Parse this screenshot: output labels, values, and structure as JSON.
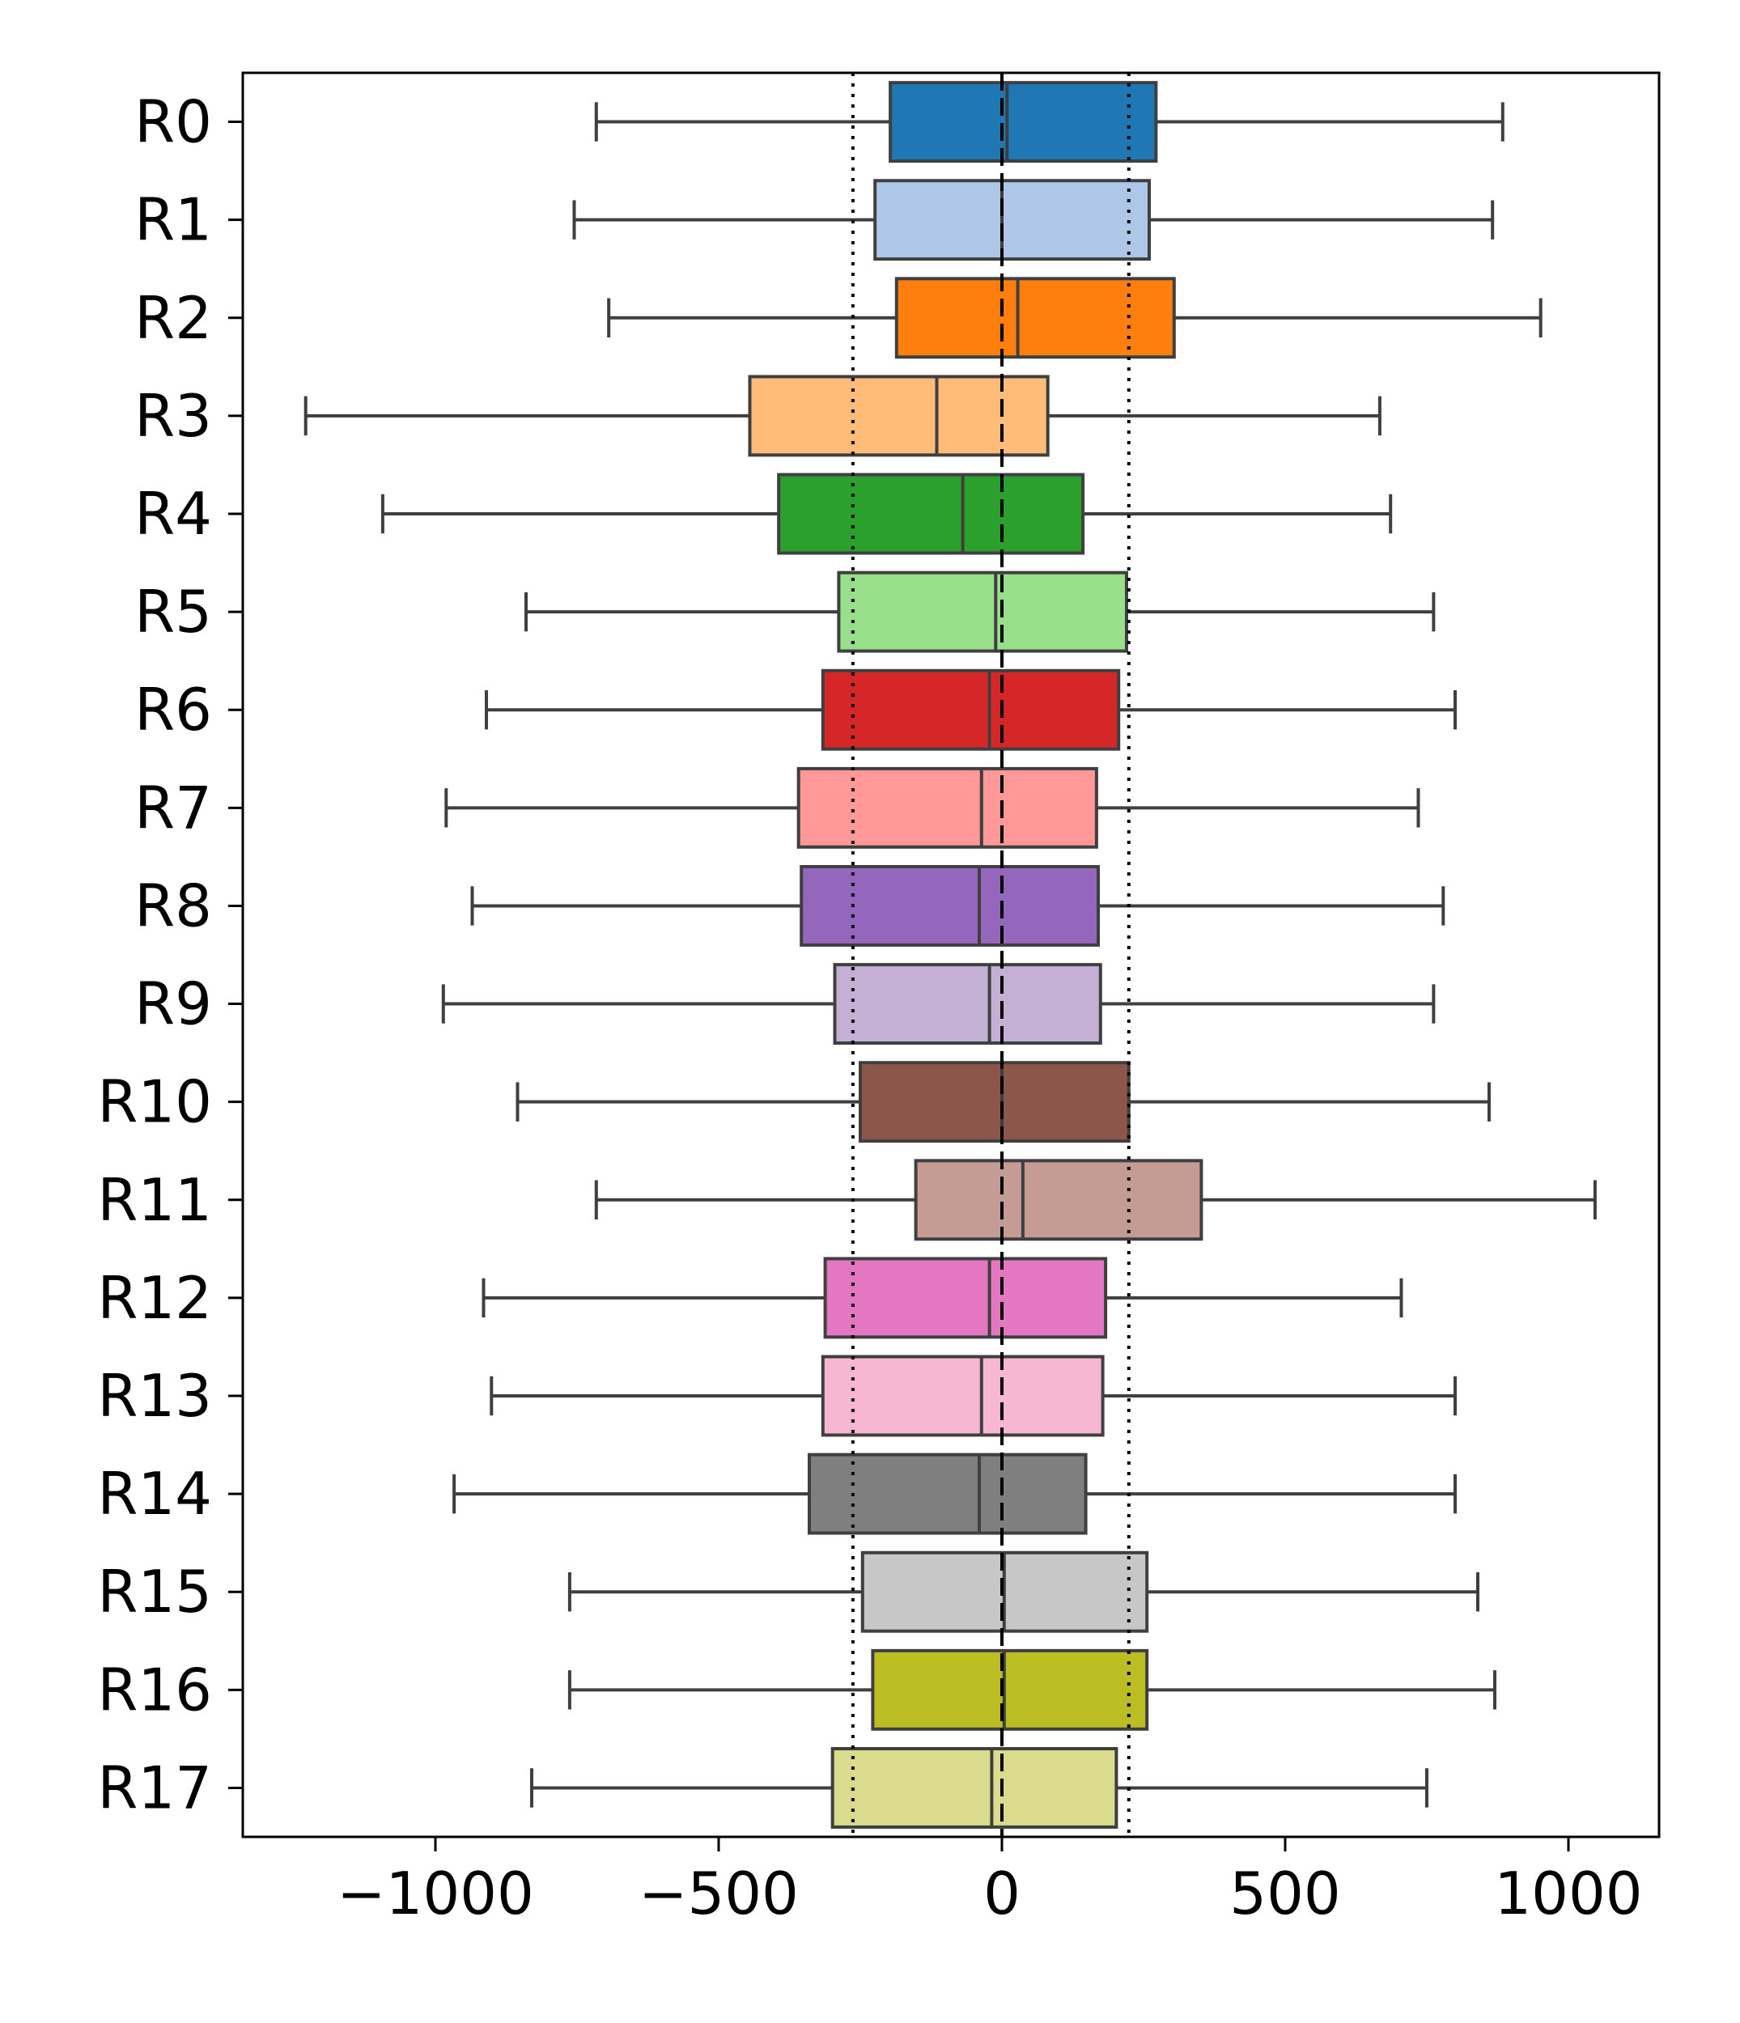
{
  "chart_data": {
    "type": "boxplot",
    "orientation": "horizontal",
    "title": "",
    "xlabel": "",
    "ylabel": "",
    "xlim": [
      -1340,
      1160
    ],
    "xticks": [
      -1000,
      -500,
      0,
      500,
      1000
    ],
    "xtick_labels": [
      "−1000",
      "−500",
      "0",
      "500",
      "1000"
    ],
    "grid": false,
    "reference_lines": [
      {
        "value": 0,
        "style": "dashed"
      },
      {
        "value": -263,
        "style": "dotted"
      },
      {
        "value": 224,
        "style": "dotted"
      }
    ],
    "categories": [
      "R0",
      "R1",
      "R2",
      "R3",
      "R4",
      "R5",
      "R6",
      "R7",
      "R8",
      "R9",
      "R10",
      "R11",
      "R12",
      "R13",
      "R14",
      "R15",
      "R16",
      "R17"
    ],
    "boxes": [
      {
        "label": "R0",
        "whisker_low": -716,
        "q1": -197,
        "median": 9,
        "q3": 272,
        "whisker_high": 884,
        "color": "#1f77b4"
      },
      {
        "label": "R1",
        "whisker_low": -755,
        "q1": -224,
        "median": 0,
        "q3": 260,
        "whisker_high": 866,
        "color": "#aec7e8"
      },
      {
        "label": "R2",
        "whisker_low": -694,
        "q1": -186,
        "median": 28,
        "q3": 304,
        "whisker_high": 951,
        "color": "#ff7f0e"
      },
      {
        "label": "R3",
        "whisker_low": -1229,
        "q1": -445,
        "median": -115,
        "q3": 81,
        "whisker_high": 667,
        "color": "#ffbb78"
      },
      {
        "label": "R4",
        "whisker_low": -1093,
        "q1": -394,
        "median": -69,
        "q3": 143,
        "whisker_high": 686,
        "color": "#2ca02c"
      },
      {
        "label": "R5",
        "whisker_low": -840,
        "q1": -288,
        "median": -11,
        "q3": 220,
        "whisker_high": 762,
        "color": "#98df8a"
      },
      {
        "label": "R6",
        "whisker_low": -910,
        "q1": -316,
        "median": -22,
        "q3": 206,
        "whisker_high": 800,
        "color": "#d62728"
      },
      {
        "label": "R7",
        "whisker_low": -981,
        "q1": -359,
        "median": -36,
        "q3": 167,
        "whisker_high": 735,
        "color": "#ff9896"
      },
      {
        "label": "R8",
        "whisker_low": -935,
        "q1": -354,
        "median": -40,
        "q3": 170,
        "whisker_high": 779,
        "color": "#9467bd"
      },
      {
        "label": "R9",
        "whisker_low": -986,
        "q1": -295,
        "median": -22,
        "q3": 174,
        "whisker_high": 762,
        "color": "#c5b0d5"
      },
      {
        "label": "R10",
        "whisker_low": -855,
        "q1": -250,
        "median": 0,
        "q3": 224,
        "whisker_high": 860,
        "color": "#8c564b"
      },
      {
        "label": "R11",
        "whisker_low": -716,
        "q1": -152,
        "median": 37,
        "q3": 352,
        "whisker_high": 1047,
        "color": "#c49c94"
      },
      {
        "label": "R12",
        "whisker_low": -915,
        "q1": -312,
        "median": -22,
        "q3": 183,
        "whisker_high": 705,
        "color": "#e377c2"
      },
      {
        "label": "R13",
        "whisker_low": -901,
        "q1": -316,
        "median": -36,
        "q3": 178,
        "whisker_high": 800,
        "color": "#f7b6d2"
      },
      {
        "label": "R14",
        "whisker_low": -967,
        "q1": -340,
        "median": -40,
        "q3": 148,
        "whisker_high": 800,
        "color": "#7f7f7f"
      },
      {
        "label": "R15",
        "whisker_low": -763,
        "q1": -246,
        "median": 4,
        "q3": 256,
        "whisker_high": 840,
        "color": "#c7c7c7"
      },
      {
        "label": "R16",
        "whisker_low": -763,
        "q1": -228,
        "median": 4,
        "q3": 256,
        "whisker_high": 870,
        "color": "#bcbd22"
      },
      {
        "label": "R17",
        "whisker_low": -830,
        "q1": -299,
        "median": -18,
        "q3": 202,
        "whisker_high": 750,
        "color": "#dbdb8d"
      }
    ]
  }
}
